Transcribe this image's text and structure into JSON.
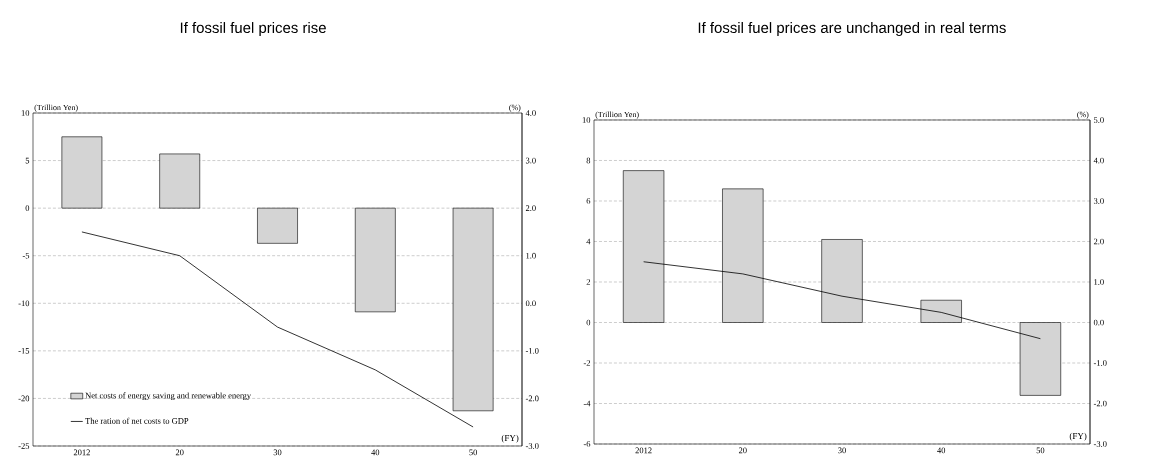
{
  "chart_data": [
    {
      "type": "bar",
      "title": "If fossil fuel prices rise",
      "xlabel": "(FY)",
      "ylabel": "(Trillion Yen)",
      "y2label": "(%)",
      "categories": [
        "2012",
        "20",
        "30",
        "40",
        "50"
      ],
      "series": [
        {
          "name": "Net costs of energy saving and renewable energy",
          "color": "#d4d4d4",
          "values": [
            7.5,
            5.7,
            -3.7,
            -10.9,
            -21.3
          ]
        },
        {
          "name": "The ration of net costs to GDP",
          "type": "line",
          "axis": "y2",
          "color": "#000000",
          "values": [
            1.5,
            1.0,
            -0.5,
            -1.4,
            -2.6
          ]
        }
      ],
      "ylim": [
        -25,
        10
      ],
      "yticks": [
        10,
        5,
        0,
        -5,
        -10,
        -15,
        -20,
        -25
      ],
      "y2lim": [
        -3,
        4
      ],
      "y2ticks": [
        {
          "value": 4,
          "label": "4.0"
        },
        {
          "value": 3,
          "label": "3.0"
        },
        {
          "value": 2,
          "label": "2.0"
        },
        {
          "value": 1,
          "label": "1.0"
        },
        {
          "value": 0,
          "label": "0.0"
        },
        {
          "value": -1,
          "label": "-1.0"
        },
        {
          "value": -2,
          "label": "-2.0"
        },
        {
          "value": -3,
          "label": "-3.0"
        }
      ],
      "grid": "y",
      "legend": "bottom left",
      "marker": "none"
    },
    {
      "type": "bar",
      "title": "If fossil fuel prices are unchanged in real terms",
      "xlabel": "(FY)",
      "ylabel": "(Trillion Yen)",
      "y2label": "(%)",
      "categories": [
        "2012",
        "20",
        "30",
        "40",
        "50"
      ],
      "series": [
        {
          "color": "#d4d4d4",
          "values": [
            7.5,
            6.6,
            4.1,
            1.1,
            -3.6
          ]
        },
        {
          "type": "line",
          "axis": "y2",
          "color": "#000000",
          "values": [
            1.5,
            1.2,
            0.65,
            0.25,
            -0.4
          ]
        }
      ],
      "ylim": [
        -6,
        10
      ],
      "yticks": [
        10,
        8,
        6,
        4,
        2,
        0,
        -2,
        -4,
        -6
      ],
      "y2lim": [
        -3,
        5
      ],
      "y2ticks": [
        {
          "value": 5,
          "label": "5.0"
        },
        {
          "value": 4,
          "label": "4.0"
        },
        {
          "value": 3,
          "label": "3.0"
        },
        {
          "value": 2,
          "label": "2.0"
        },
        {
          "value": 1,
          "label": "1.0"
        },
        {
          "value": 0,
          "label": "0.0"
        },
        {
          "value": -1,
          "label": "-1.0"
        },
        {
          "value": -2,
          "label": "-2.0"
        },
        {
          "value": -3,
          "label": "-3.0"
        }
      ],
      "grid": "y",
      "legend": false,
      "marker": "none"
    }
  ]
}
